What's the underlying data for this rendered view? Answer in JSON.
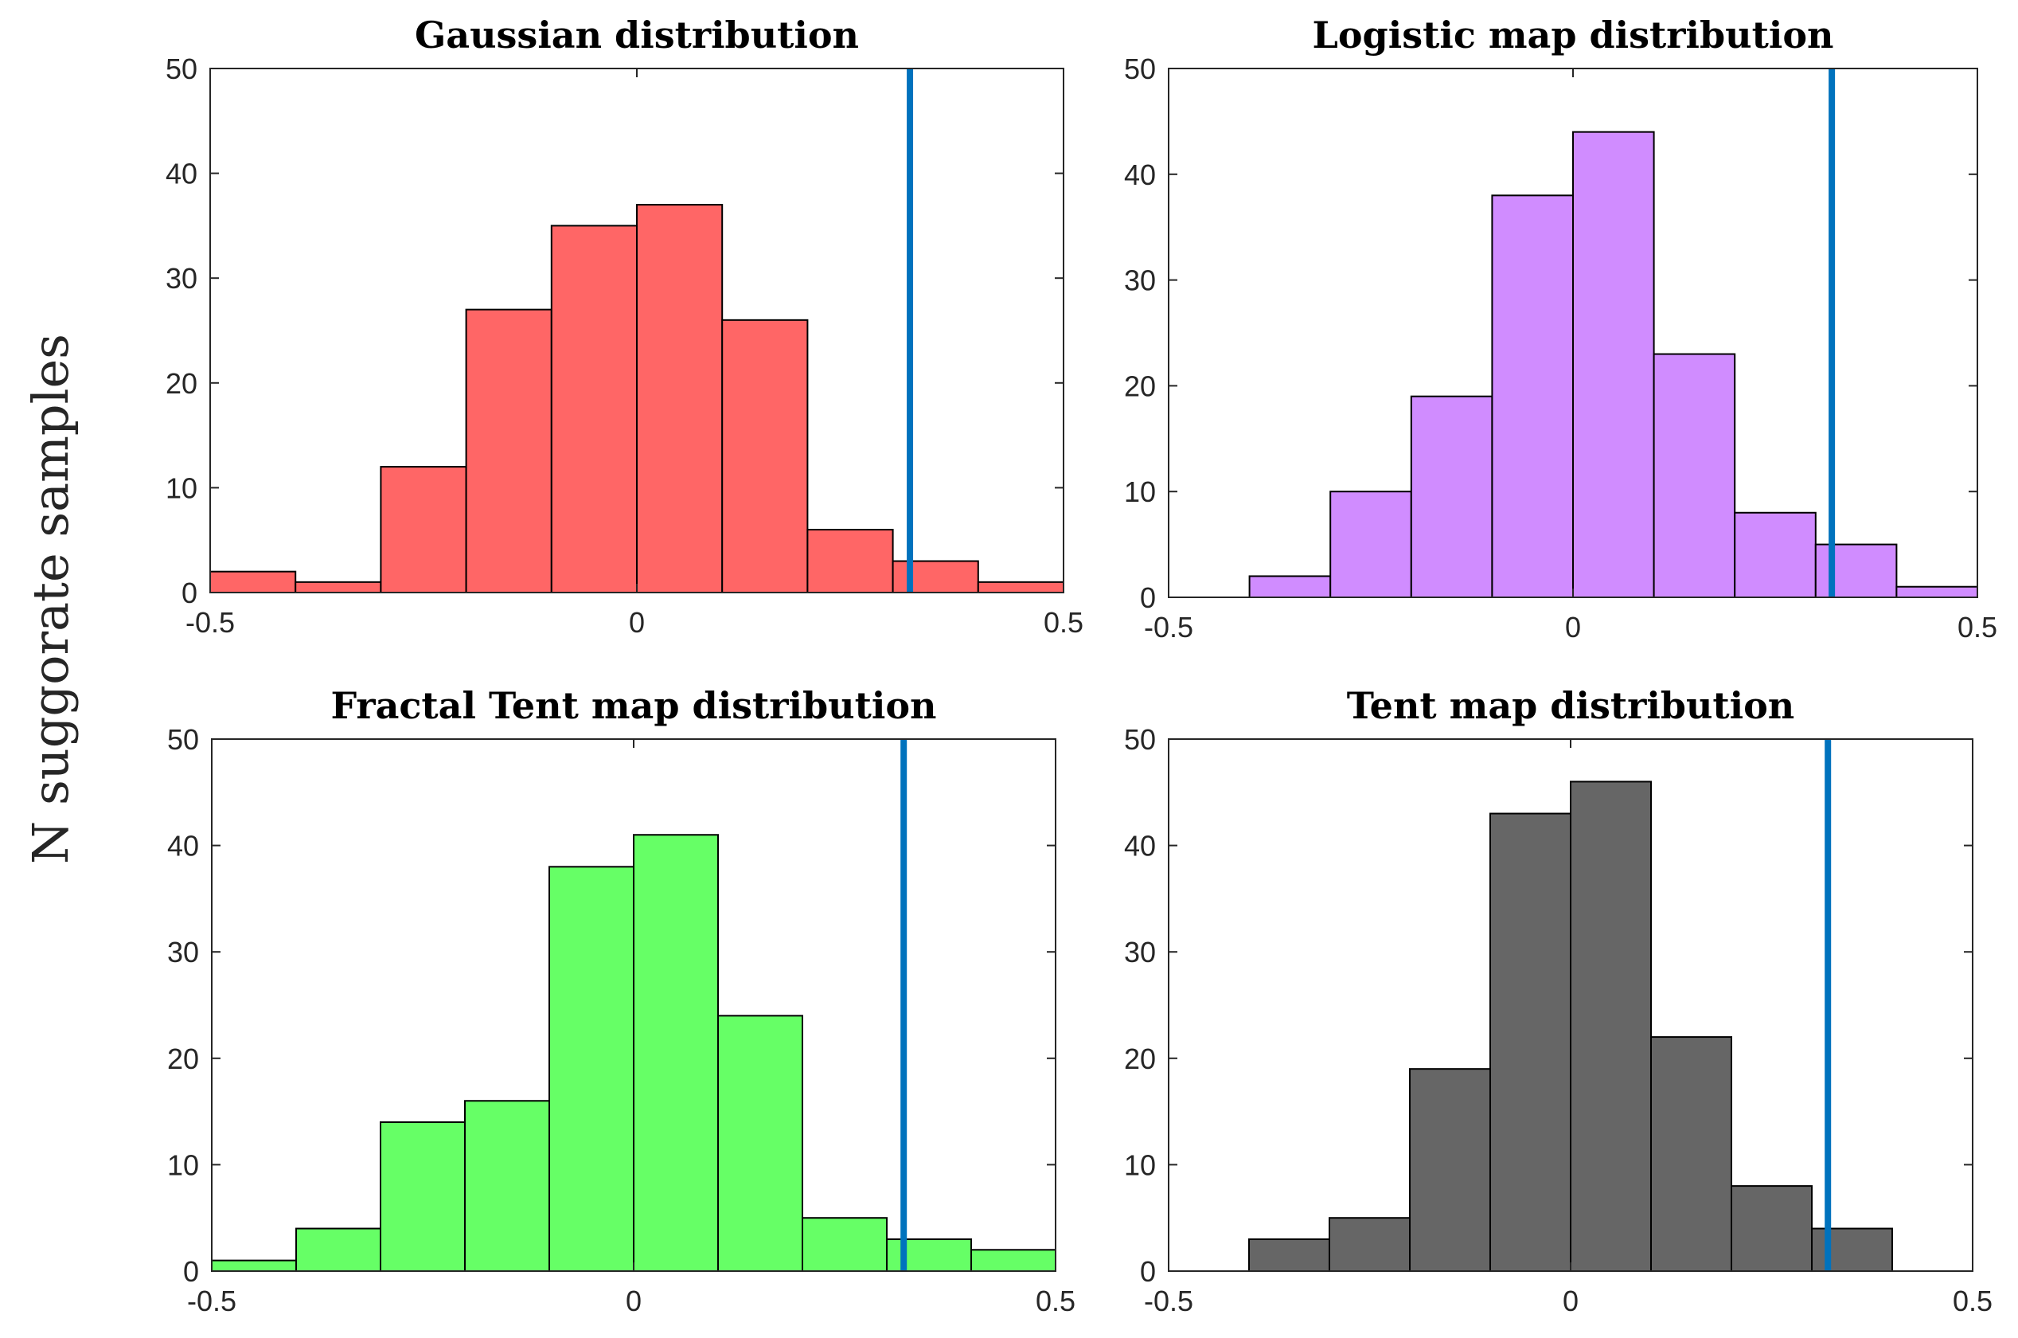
{
  "figure": {
    "ylabel": "N suggorate samples"
  },
  "chart_data": [
    {
      "type": "bar",
      "title": "Gaussian distribution",
      "xlabel": "",
      "ylabel": "N suggorate samples",
      "bin_edges": [
        -0.5,
        -0.4,
        -0.3,
        -0.2,
        -0.1,
        0,
        0.1,
        0.2,
        0.3,
        0.4,
        0.5
      ],
      "values": [
        2,
        1,
        12,
        27,
        35,
        37,
        26,
        6,
        3,
        1
      ],
      "xlim": [
        -0.5,
        0.5
      ],
      "ylim": [
        0,
        50
      ],
      "xticks": [
        -0.5,
        0,
        0.5
      ],
      "xtick_labels": [
        "-0.5",
        "0",
        "0.5"
      ],
      "yticks": [
        0,
        10,
        20,
        30,
        40,
        50
      ],
      "ytick_labels": [
        "0",
        "10",
        "20",
        "30",
        "40",
        "50"
      ],
      "bar_color": "#ff6666",
      "reference_line_x": 0.32,
      "reference_line_color": "#0072bd"
    },
    {
      "type": "bar",
      "title": "Logistic map distribution",
      "xlabel": "",
      "ylabel": "N suggorate samples",
      "bin_edges": [
        -0.5,
        -0.4,
        -0.3,
        -0.2,
        -0.1,
        0,
        0.1,
        0.2,
        0.3,
        0.4,
        0.5
      ],
      "values": [
        0,
        2,
        10,
        19,
        38,
        44,
        23,
        8,
        5,
        1
      ],
      "xlim": [
        -0.5,
        0.5
      ],
      "ylim": [
        0,
        50
      ],
      "xticks": [
        -0.5,
        0,
        0.5
      ],
      "xtick_labels": [
        "-0.5",
        "0",
        "0.5"
      ],
      "yticks": [
        0,
        10,
        20,
        30,
        40,
        50
      ],
      "ytick_labels": [
        "0",
        "10",
        "20",
        "30",
        "40",
        "50"
      ],
      "bar_color": "#d08cff",
      "reference_line_x": 0.32,
      "reference_line_color": "#0072bd"
    },
    {
      "type": "bar",
      "title": "Fractal Tent map distribution",
      "xlabel": "",
      "ylabel": "N suggorate samples",
      "bin_edges": [
        -0.5,
        -0.4,
        -0.3,
        -0.2,
        -0.1,
        0,
        0.1,
        0.2,
        0.3,
        0.4,
        0.5
      ],
      "values": [
        1,
        4,
        14,
        16,
        38,
        41,
        24,
        5,
        3,
        2
      ],
      "xlim": [
        -0.5,
        0.5
      ],
      "ylim": [
        0,
        50
      ],
      "xticks": [
        -0.5,
        0,
        0.5
      ],
      "xtick_labels": [
        "-0.5",
        "0",
        "0.5"
      ],
      "yticks": [
        0,
        10,
        20,
        30,
        40,
        50
      ],
      "ytick_labels": [
        "0",
        "10",
        "20",
        "30",
        "40",
        "50"
      ],
      "bar_color": "#66ff66",
      "reference_line_x": 0.32,
      "reference_line_color": "#0072bd"
    },
    {
      "type": "bar",
      "title": "Tent map distribution",
      "xlabel": "",
      "ylabel": "N suggorate samples",
      "bin_edges": [
        -0.5,
        -0.4,
        -0.3,
        -0.2,
        -0.1,
        0,
        0.1,
        0.2,
        0.3,
        0.4,
        0.5
      ],
      "values": [
        0,
        3,
        5,
        19,
        43,
        46,
        22,
        8,
        4,
        0
      ],
      "xlim": [
        -0.5,
        0.5
      ],
      "ylim": [
        0,
        50
      ],
      "xticks": [
        -0.5,
        0,
        0.5
      ],
      "xtick_labels": [
        "-0.5",
        "0",
        "0.5"
      ],
      "yticks": [
        0,
        10,
        20,
        30,
        40,
        50
      ],
      "ytick_labels": [
        "0",
        "10",
        "20",
        "30",
        "40",
        "50"
      ],
      "bar_color": "#666666",
      "reference_line_x": 0.32,
      "reference_line_color": "#0072bd"
    }
  ]
}
